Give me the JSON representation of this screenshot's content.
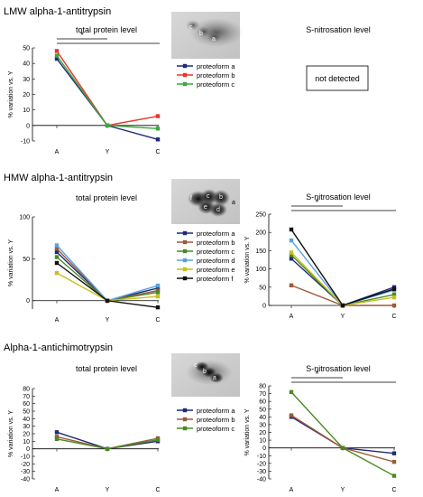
{
  "sections": [
    {
      "title": "LMW alpha-1-antitrypsin"
    },
    {
      "title": "HMW alpha-1-antitrypsin"
    },
    {
      "title": "Alpha-1-antichimotrypsin"
    }
  ],
  "not_detected_text": "not detected",
  "blots": [
    {
      "labels": [
        "c",
        "b",
        "a"
      ]
    },
    {
      "labels": [
        "f",
        "c",
        "b",
        "e",
        "d",
        "a"
      ]
    },
    {
      "labels": [
        "c",
        "b",
        "a"
      ]
    }
  ],
  "colors": {
    "proteoform a": "#1f2a7a",
    "proteoform b": "#e8342c",
    "proteoform b brown": "#9c5a38",
    "proteoform c": "#3aa83a",
    "proteoform c dark": "#4a8a22",
    "proteoform d": "#5aa0e0",
    "proteoform e": "#c8c020",
    "proteoform f": "#111111"
  },
  "chart_data": [
    {
      "id": "lmw-total",
      "type": "line",
      "title": "total protein level",
      "ylabel": "% variation vs. Y",
      "categories": [
        "A",
        "Y",
        "C"
      ],
      "ylim": [
        -10,
        50
      ],
      "yticks": [
        -10,
        0,
        10,
        20,
        30,
        40,
        50
      ],
      "annotation": "*",
      "legend": "right",
      "series": [
        {
          "name": "proteoform a",
          "color": "#1f2a7a",
          "values": [
            43,
            0,
            -9
          ]
        },
        {
          "name": "proteoform b",
          "color": "#e8342c",
          "values": [
            48,
            0,
            6
          ]
        },
        {
          "name": "proteoform c",
          "color": "#3aa83a",
          "values": [
            45,
            0,
            -2
          ]
        }
      ]
    },
    {
      "id": "hmw-total",
      "type": "line",
      "title": "total protein level",
      "ylabel": "% variation vs. Y",
      "categories": [
        "A",
        "Y",
        "C"
      ],
      "ylim": [
        -10,
        100
      ],
      "yticks": [
        0,
        50,
        100
      ],
      "legend": "right",
      "series": [
        {
          "name": "proteoform a",
          "color": "#1f2a7a",
          "values": [
            58,
            0,
            15
          ]
        },
        {
          "name": "proteoform b",
          "color": "#9c5a38",
          "values": [
            62,
            0,
            12
          ]
        },
        {
          "name": "proteoform c",
          "color": "#4a8a22",
          "values": [
            52,
            0,
            10
          ]
        },
        {
          "name": "proteoform d",
          "color": "#5aa0e0",
          "values": [
            66,
            0,
            18
          ]
        },
        {
          "name": "proteoform e",
          "color": "#c8c020",
          "values": [
            33,
            0,
            5
          ]
        },
        {
          "name": "proteoform f",
          "color": "#111111",
          "values": [
            45,
            0,
            -8
          ]
        }
      ]
    },
    {
      "id": "hmw-snitro",
      "type": "line",
      "title": "S-nitrosation level",
      "ylabel": "% variation vs. Y",
      "categories": [
        "A",
        "Y",
        "C"
      ],
      "ylim": [
        0,
        250
      ],
      "yticks": [
        0,
        50,
        100,
        150,
        200,
        250
      ],
      "annotation": "*",
      "series": [
        {
          "color": "#1f2a7a",
          "values": [
            128,
            0,
            50
          ]
        },
        {
          "color": "#9c5a38",
          "values": [
            55,
            0,
            0
          ]
        },
        {
          "color": "#4a8a22",
          "values": [
            138,
            0,
            30
          ]
        },
        {
          "color": "#5aa0e0",
          "values": [
            178,
            0,
            42
          ]
        },
        {
          "color": "#c8c020",
          "values": [
            145,
            0,
            22
          ]
        },
        {
          "color": "#111111",
          "values": [
            208,
            0,
            45
          ]
        }
      ]
    },
    {
      "id": "alpha-total",
      "type": "line",
      "title": "total protein level",
      "ylabel": "% variation vs. Y",
      "categories": [
        "A",
        "Y",
        "C"
      ],
      "ylim": [
        -40,
        80
      ],
      "yticks": [
        -40,
        -30,
        -20,
        -10,
        0,
        10,
        20,
        30,
        40,
        50,
        60,
        70,
        80
      ],
      "legend": "right",
      "series": [
        {
          "name": "proteoform a",
          "color": "#1f2a7a",
          "values": [
            22,
            0,
            10
          ]
        },
        {
          "name": "proteoform b",
          "color": "#9c5a38",
          "values": [
            16,
            0,
            14
          ]
        },
        {
          "name": "proteoform c",
          "color": "#4a8a22",
          "values": [
            13,
            0,
            12
          ]
        }
      ]
    },
    {
      "id": "alpha-snitro",
      "type": "line",
      "title": "S-nitrosation level",
      "ylabel": "% variation vs. Y",
      "categories": [
        "A",
        "Y",
        "C"
      ],
      "ylim": [
        -40,
        80
      ],
      "yticks": [
        -40,
        -30,
        -20,
        -10,
        0,
        10,
        20,
        30,
        40,
        50,
        60,
        70,
        80
      ],
      "annotation": "*",
      "series": [
        {
          "color": "#1f2a7a",
          "values": [
            40,
            0,
            -7
          ]
        },
        {
          "color": "#9c5a38",
          "values": [
            42,
            0,
            -18
          ]
        },
        {
          "color": "#4a8a22",
          "values": [
            72,
            0,
            -36
          ]
        }
      ]
    }
  ],
  "lmw_snitro_title": "S-nitrosation level"
}
